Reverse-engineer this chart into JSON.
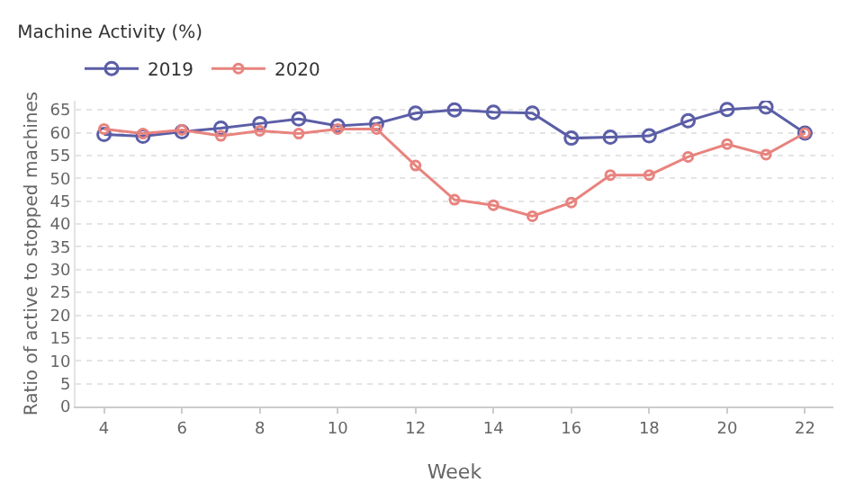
{
  "chart_data": {
    "type": "line",
    "title": "Machine Activity (%)",
    "xlabel": "Week",
    "ylabel": "Ratio of active to stopped machines",
    "x": [
      4,
      5,
      6,
      7,
      8,
      9,
      10,
      11,
      12,
      13,
      14,
      15,
      16,
      17,
      18,
      19,
      20,
      21,
      22
    ],
    "series": [
      {
        "name": "2019",
        "color": "#5b5ea6",
        "values": [
          59.6,
          59.2,
          60.2,
          61,
          62,
          63,
          61.5,
          62,
          64.3,
          65,
          64.5,
          64.3,
          58.8,
          59,
          59.3,
          62.6,
          65.1,
          65.6,
          59.9
        ]
      },
      {
        "name": "2020",
        "color": "#e8837e",
        "values": [
          60.8,
          59.8,
          60.6,
          59.3,
          60.4,
          59.8,
          60.8,
          60.8,
          52.8,
          45.3,
          44.1,
          41.7,
          44.7,
          50.7,
          50.7,
          54.7,
          57.5,
          55.2,
          59.9
        ]
      }
    ],
    "xlim": [
      3.27,
      22.73
    ],
    "xticks": [
      4,
      6,
      8,
      10,
      12,
      14,
      16,
      18,
      20,
      22
    ],
    "ylim": [
      0,
      67
    ],
    "yticks": [
      0,
      5,
      10,
      15,
      20,
      25,
      30,
      35,
      40,
      45,
      50,
      55,
      60,
      65
    ],
    "grid": "y",
    "legend": "top left",
    "marker": "circle",
    "line_style": "solid"
  }
}
